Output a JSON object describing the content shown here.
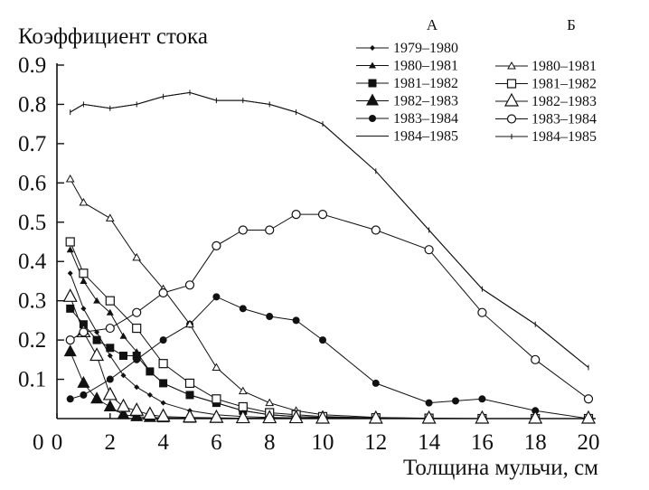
{
  "chart_data": {
    "type": "line",
    "title": "",
    "ylabel": "Коэффициент стока",
    "xlabel": "Толщина мульчи, см",
    "xlim": [
      0,
      20
    ],
    "ylim": [
      0,
      0.9
    ],
    "x_ticks": [
      0,
      2,
      4,
      6,
      8,
      10,
      12,
      14,
      16,
      18,
      20
    ],
    "y_ticks": [
      0.1,
      0.2,
      0.3,
      0.4,
      0.5,
      0.6,
      0.7,
      0.8,
      0.9
    ],
    "grid": false,
    "legend": {
      "placement": "top-right",
      "group_a": "А",
      "group_b": "Б"
    },
    "series": [
      {
        "name": "1979–1980",
        "group": "А",
        "marker": "diamond",
        "x": [
          0.5,
          1,
          1.5,
          2,
          2.5,
          3,
          3.5,
          4,
          5,
          6,
          7,
          8,
          9,
          10,
          12,
          14,
          16,
          18,
          20
        ],
        "y": [
          0.37,
          0.28,
          0.22,
          0.16,
          0.11,
          0.08,
          0.06,
          0.04,
          0.02,
          0.01,
          0.005,
          0.003,
          0.002,
          0.001,
          0,
          0,
          0,
          0,
          0
        ]
      },
      {
        "name": "1980–1981",
        "group": "А",
        "marker": "small-triangle-filled",
        "x": [
          0.5,
          1,
          1.5,
          2,
          2.5,
          3,
          3.5,
          4,
          5,
          6,
          7,
          8,
          9,
          10,
          12,
          14,
          16,
          18,
          20
        ],
        "y": [
          0.43,
          0.35,
          0.3,
          0.27,
          0.21,
          0.17,
          0.12,
          0.09,
          0.06,
          0.04,
          0.02,
          0.01,
          0.005,
          0.003,
          0.001,
          0,
          0,
          0,
          0
        ]
      },
      {
        "name": "1981–1982",
        "group": "А",
        "marker": "square-filled",
        "x": [
          0.5,
          1,
          1.5,
          2,
          2.5,
          3,
          3.5,
          4,
          5,
          6,
          7,
          8,
          9,
          10,
          12,
          14,
          16,
          18,
          20
        ],
        "y": [
          0.28,
          0.24,
          0.2,
          0.18,
          0.16,
          0.16,
          0.12,
          0.09,
          0.06,
          0.04,
          0.02,
          0.01,
          0.005,
          0.003,
          0.001,
          0,
          0,
          0,
          0
        ]
      },
      {
        "name": "1982–1983",
        "group": "А",
        "marker": "large-triangle-filled",
        "x": [
          0.5,
          1,
          1.5,
          2,
          2.5,
          3,
          3.5,
          4,
          5,
          6,
          7,
          8,
          9,
          10,
          12,
          14,
          16,
          18,
          20
        ],
        "y": [
          0.17,
          0.09,
          0.05,
          0.03,
          0.01,
          0.005,
          0.003,
          0.002,
          0.001,
          0.001,
          0.001,
          0.001,
          0.001,
          0.001,
          0,
          0,
          0,
          0,
          0
        ]
      },
      {
        "name": "1983–1984",
        "group": "А",
        "marker": "circle-filled",
        "x": [
          0.5,
          1,
          2,
          3,
          4,
          5,
          6,
          7,
          8,
          9,
          10,
          12,
          14,
          15,
          16,
          18,
          20
        ],
        "y": [
          0.05,
          0.06,
          0.1,
          0.15,
          0.2,
          0.24,
          0.31,
          0.28,
          0.26,
          0.25,
          0.2,
          0.09,
          0.04,
          0.045,
          0.05,
          0.02,
          0
        ]
      },
      {
        "name": "1984–1985",
        "group": "А",
        "marker": "none",
        "x": [
          0.5,
          1,
          2,
          3,
          4,
          5,
          6,
          7,
          8,
          9,
          10,
          12,
          14,
          16,
          18,
          20
        ],
        "y": [
          0.78,
          0.8,
          0.79,
          0.8,
          0.82,
          0.83,
          0.81,
          0.81,
          0.8,
          0.78,
          0.75,
          0.63,
          0.48,
          0.33,
          0.24,
          0.13
        ]
      },
      {
        "name": "1980–1981",
        "group": "Б",
        "marker": "triangle-open",
        "x": [
          0.5,
          1,
          2,
          3,
          4,
          5,
          6,
          7,
          8,
          9,
          10,
          12,
          14,
          16,
          18,
          20
        ],
        "y": [
          0.61,
          0.55,
          0.51,
          0.41,
          0.33,
          0.24,
          0.13,
          0.07,
          0.04,
          0.02,
          0.01,
          0.003,
          0.001,
          0,
          0,
          0
        ]
      },
      {
        "name": "1981–1982",
        "group": "Б",
        "marker": "square-open",
        "x": [
          0.5,
          1,
          2,
          3,
          4,
          5,
          6,
          7,
          8,
          9,
          10,
          12,
          14,
          16,
          18,
          20
        ],
        "y": [
          0.45,
          0.37,
          0.3,
          0.23,
          0.14,
          0.09,
          0.05,
          0.03,
          0.015,
          0.01,
          0.005,
          0.002,
          0.001,
          0,
          0,
          0
        ]
      },
      {
        "name": "1982–1983",
        "group": "Б",
        "marker": "large-triangle-open",
        "x": [
          0.5,
          1,
          1.5,
          2,
          2.5,
          3,
          3.5,
          4,
          5,
          6,
          7,
          8,
          9,
          10,
          12,
          14,
          16,
          18,
          20
        ],
        "y": [
          0.31,
          0.22,
          0.16,
          0.06,
          0.03,
          0.02,
          0.01,
          0.005,
          0.003,
          0.002,
          0.001,
          0.001,
          0.001,
          0,
          0,
          0,
          0,
          0,
          0
        ]
      },
      {
        "name": "1983–1984",
        "group": "Б",
        "marker": "circle-open",
        "x": [
          0.5,
          1,
          2,
          3,
          4,
          5,
          6,
          7,
          8,
          9,
          10,
          12,
          14,
          16,
          18,
          20
        ],
        "y": [
          0.2,
          0.22,
          0.23,
          0.27,
          0.32,
          0.34,
          0.44,
          0.48,
          0.48,
          0.52,
          0.52,
          0.48,
          0.43,
          0.27,
          0.15,
          0.05
        ]
      },
      {
        "name": "1984–1985",
        "group": "Б",
        "marker": "tick",
        "x": [
          0.5,
          1,
          2,
          3,
          4,
          5,
          6,
          7,
          8,
          9,
          10,
          12,
          14,
          16,
          18,
          20
        ],
        "y": [
          0.78,
          0.8,
          0.79,
          0.8,
          0.82,
          0.83,
          0.81,
          0.81,
          0.8,
          0.78,
          0.75,
          0.63,
          0.48,
          0.33,
          0.24,
          0.13
        ]
      }
    ]
  }
}
